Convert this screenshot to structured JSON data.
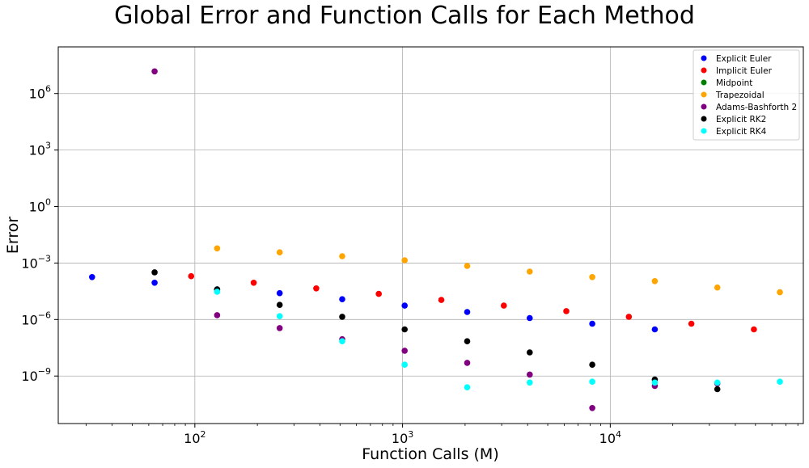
{
  "chart_data": {
    "type": "scatter",
    "title": "Global Error and Function Calls for Each Method",
    "xlabel": "Function Calls (M)",
    "ylabel": "Error",
    "xscale": "log",
    "yscale": "log",
    "xlim": [
      22,
      85000
    ],
    "ylim": [
      3e-12,
      300000000.0
    ],
    "grid": true,
    "legend_position": "top-right",
    "x_ticks": [
      {
        "value": 100,
        "base": "10",
        "exp": "2"
      },
      {
        "value": 1000,
        "base": "10",
        "exp": "3"
      },
      {
        "value": 10000,
        "base": "10",
        "exp": "4"
      }
    ],
    "y_ticks": [
      {
        "value": 1e-09,
        "base": "10",
        "exp": "−9"
      },
      {
        "value": 1e-06,
        "base": "10",
        "exp": "−6"
      },
      {
        "value": 0.001,
        "base": "10",
        "exp": "−3"
      },
      {
        "value": 1,
        "base": "10",
        "exp": "0"
      },
      {
        "value": 1000,
        "base": "10",
        "exp": "3"
      },
      {
        "value": 1000000,
        "base": "10",
        "exp": "6"
      }
    ],
    "series": [
      {
        "name": "Explicit Euler",
        "color": "#0000ff",
        "points": [
          [
            32,
            0.00018
          ],
          [
            64,
            9e-05
          ],
          [
            128,
            4e-05
          ],
          [
            256,
            2.5e-05
          ],
          [
            512,
            1.2e-05
          ],
          [
            1024,
            5.5e-06
          ],
          [
            2048,
            2.5e-06
          ],
          [
            4096,
            1.2e-06
          ],
          [
            8192,
            6e-07
          ],
          [
            16384,
            3e-07
          ]
        ]
      },
      {
        "name": "Implicit Euler",
        "color": "#ff0000",
        "points": [
          [
            96,
            0.0002
          ],
          [
            192,
            9e-05
          ],
          [
            384,
            4.5e-05
          ],
          [
            768,
            2.3e-05
          ],
          [
            1536,
            1.1e-05
          ],
          [
            3072,
            5.5e-06
          ],
          [
            6144,
            2.8e-06
          ],
          [
            12288,
            1.4e-06
          ],
          [
            24576,
            6e-07
          ],
          [
            49152,
            3e-07
          ]
        ]
      },
      {
        "name": "Midpoint",
        "color": "#008000",
        "points": []
      },
      {
        "name": "Trapezoidal",
        "color": "#ffa500",
        "points": [
          [
            128,
            0.006
          ],
          [
            256,
            0.0037
          ],
          [
            512,
            0.0023
          ],
          [
            1024,
            0.0014
          ],
          [
            2048,
            0.0007
          ],
          [
            4096,
            0.00035
          ],
          [
            8192,
            0.00018
          ],
          [
            16384,
            0.00011
          ],
          [
            32768,
            5e-05
          ],
          [
            65536,
            2.8e-05
          ]
        ]
      },
      {
        "name": "Adams-Bashforth 2",
        "color": "#800080",
        "points": [
          [
            64,
            15000000
          ],
          [
            128,
            1.7e-06
          ],
          [
            256,
            3.5e-07
          ],
          [
            512,
            9e-08
          ],
          [
            1024,
            2.2e-08
          ],
          [
            2048,
            5e-09
          ],
          [
            4096,
            1.2e-09
          ],
          [
            8192,
            2e-11
          ],
          [
            16384,
            3e-10
          ],
          [
            32768,
            4e-10
          ]
        ]
      },
      {
        "name": "Explicit RK2",
        "color": "#000000",
        "points": [
          [
            64,
            0.00032
          ],
          [
            128,
            4e-05
          ],
          [
            256,
            6e-06
          ],
          [
            512,
            1.4e-06
          ],
          [
            1024,
            3e-07
          ],
          [
            2048,
            7e-08
          ],
          [
            4096,
            1.8e-08
          ],
          [
            8192,
            4e-09
          ],
          [
            16384,
            6.5e-10
          ],
          [
            32768,
            2e-10
          ]
        ]
      },
      {
        "name": "Explicit RK4",
        "color": "#00ffff",
        "points": [
          [
            128,
            3e-05
          ],
          [
            256,
            1.5e-06
          ],
          [
            512,
            7e-08
          ],
          [
            1024,
            4e-09
          ],
          [
            2048,
            2.5e-10
          ],
          [
            4096,
            4.5e-10
          ],
          [
            8192,
            5e-10
          ],
          [
            16384,
            4.5e-10
          ],
          [
            32768,
            4.5e-10
          ],
          [
            65536,
            5e-10
          ]
        ]
      }
    ]
  }
}
